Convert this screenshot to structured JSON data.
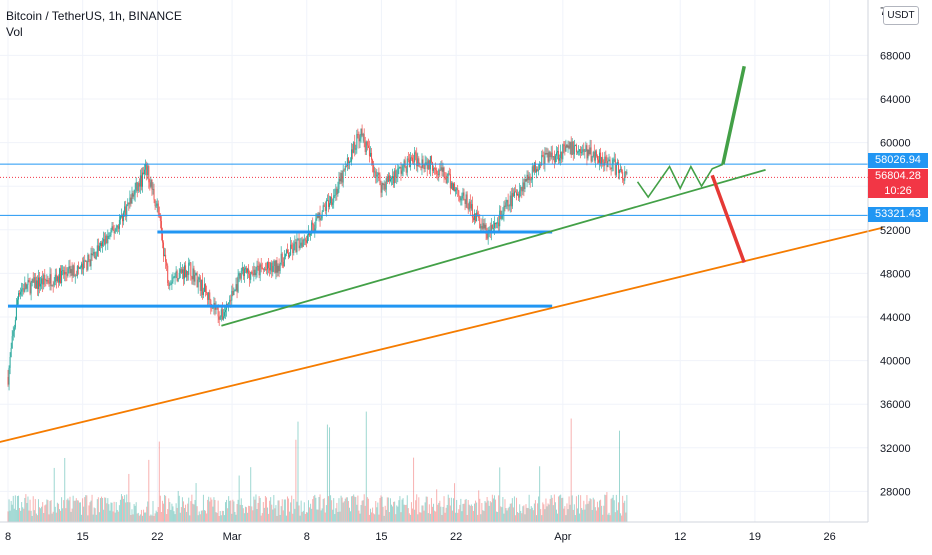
{
  "header": {
    "symbol_title": "Bitcoin / TetherUS, 1h, BINANCE",
    "volume_label": "Vol",
    "currency_button": "USDT"
  },
  "colors": {
    "up_candle": "#26a69a",
    "down_candle": "#ef5350",
    "resistance_line": "#2196f3",
    "support_line_blue": "#2196f3",
    "trend_green": "#43a047",
    "trend_orange": "#f57c00",
    "forecast_up": "#43a047",
    "forecast_down": "#e53935",
    "last_price_tag": "#f23645"
  },
  "price_tags": {
    "upper_level": "58026.94",
    "last_price": "56804.28",
    "countdown": "10:26",
    "lower_level": "53321.43"
  },
  "chart_data": {
    "type": "candlestick",
    "title": "Bitcoin / TetherUS, 1h, BINANCE",
    "xlabel": "",
    "ylabel": "",
    "ylim": [
      24000,
      72000
    ],
    "y_ticks": [
      28000,
      32000,
      36000,
      40000,
      44000,
      48000,
      52000,
      56000,
      60000,
      64000,
      68000
    ],
    "x_tick_labels": [
      "8",
      "15",
      "22",
      "Mar",
      "8",
      "15",
      "22",
      "Apr",
      "12",
      "19",
      "26"
    ],
    "grid": true,
    "price_path_approx": [
      {
        "date": "Feb 8",
        "price": 38500
      },
      {
        "date": "Feb 9",
        "price": 46500
      },
      {
        "date": "Feb 12",
        "price": 47500
      },
      {
        "date": "Feb 15",
        "price": 48500
      },
      {
        "date": "Feb 18",
        "price": 52000
      },
      {
        "date": "Feb 21",
        "price": 57500
      },
      {
        "date": "Feb 22",
        "price": 54000
      },
      {
        "date": "Feb 23",
        "price": 47500
      },
      {
        "date": "Feb 25",
        "price": 48500
      },
      {
        "date": "Feb 28",
        "price": 44000
      },
      {
        "date": "Mar 2",
        "price": 48000
      },
      {
        "date": "Mar 5",
        "price": 48500
      },
      {
        "date": "Mar 8",
        "price": 51500
      },
      {
        "date": "Mar 11",
        "price": 56000
      },
      {
        "date": "Mar 13",
        "price": 61000
      },
      {
        "date": "Mar 15",
        "price": 56000
      },
      {
        "date": "Mar 18",
        "price": 58500
      },
      {
        "date": "Mar 20",
        "price": 58000
      },
      {
        "date": "Mar 23",
        "price": 54500
      },
      {
        "date": "Mar 25",
        "price": 51500
      },
      {
        "date": "Mar 27",
        "price": 54500
      },
      {
        "date": "Mar 30",
        "price": 58500
      },
      {
        "date": "Apr 2",
        "price": 59500
      },
      {
        "date": "Apr 5",
        "price": 58500
      },
      {
        "date": "Apr 7",
        "price": 56800
      }
    ],
    "horizontal_levels": [
      {
        "price": 58026.94,
        "style": "thin-blue",
        "x_from": "Feb 5",
        "x_to": "May 1"
      },
      {
        "price": 53321.43,
        "style": "thin-blue",
        "x_from": "Feb 5",
        "x_to": "May 1"
      },
      {
        "price": 51800,
        "style": "thick-blue",
        "x_from": "Feb 22",
        "x_to": "Mar 31"
      },
      {
        "price": 45000,
        "style": "thick-blue",
        "x_from": "Feb 8",
        "x_to": "Mar 31"
      }
    ],
    "trend_lines": [
      {
        "name": "",
        "color": "green",
        "points": [
          {
            "date": "Feb 28",
            "price": 43200
          },
          {
            "date": "Apr 20",
            "price": 57500
          }
        ]
      },
      {
        "name": "",
        "color": "orange",
        "points": [
          {
            "date": "Feb 5",
            "price": 32000
          },
          {
            "date": "May 1",
            "price": 52200
          }
        ]
      }
    ],
    "forecast_paths": [
      {
        "name": "",
        "color": "green",
        "points": [
          {
            "date": "Apr 8",
            "price": 56400
          },
          {
            "date": "Apr 9",
            "price": 55000
          },
          {
            "date": "Apr 11",
            "price": 57800
          },
          {
            "date": "Apr 12",
            "price": 55800
          },
          {
            "date": "Apr 13",
            "price": 57800
          },
          {
            "date": "Apr 14",
            "price": 56000
          },
          {
            "date": "Apr 15",
            "price": 57600
          },
          {
            "date": "Apr 16",
            "price": 58000
          },
          {
            "date": "Apr 18",
            "price": 67000
          }
        ]
      },
      {
        "name": "",
        "color": "red",
        "points": [
          {
            "date": "Apr 15",
            "price": 57000
          },
          {
            "date": "Apr 18",
            "price": 49000
          }
        ]
      }
    ]
  }
}
